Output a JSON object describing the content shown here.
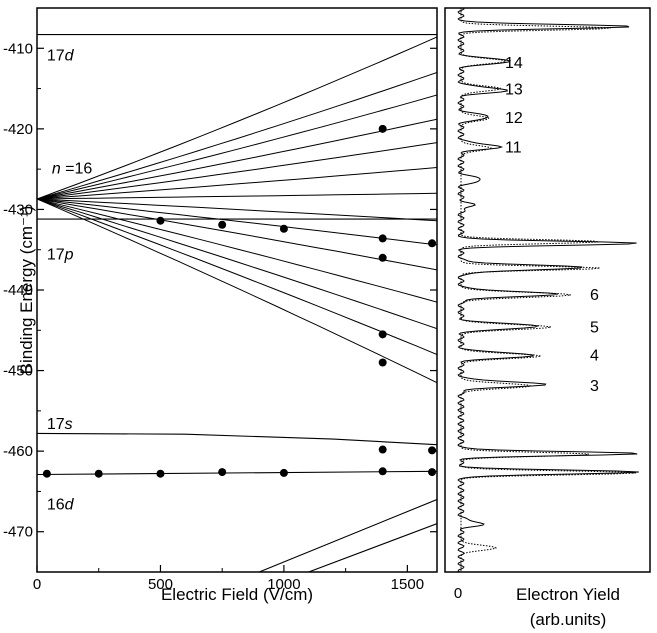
{
  "chart_data": [
    {
      "type": "line",
      "xlabel": "Electric Field (V/cm)",
      "ylabel": "Binding Energy (cm⁻¹)",
      "xlim": [
        0,
        1620
      ],
      "ylim": [
        -475,
        -405
      ],
      "x_ticks": [
        "0",
        "500",
        "1000",
        "1500"
      ],
      "x_tick_values": [
        0,
        500,
        1000,
        1500
      ],
      "y_ticks": [
        "-410",
        "-420",
        "-430",
        "-440",
        "-450",
        "-460",
        "-470"
      ],
      "y_tick_values": [
        -410,
        -420,
        -430,
        -440,
        -450,
        -460,
        -470
      ],
      "annotations": [
        {
          "text": "17d",
          "x": 40,
          "y": -410.8
        },
        {
          "text": "n =16",
          "x": 60,
          "y": -424.8
        },
        {
          "text": "17p",
          "x": 40,
          "y": -435.5
        },
        {
          "text": "17s",
          "x": 40,
          "y": -456.5
        },
        {
          "text": "16d",
          "x": 40,
          "y": -466.5
        }
      ],
      "stark_fan": {
        "origin": [
          0,
          -428.7
        ],
        "end_values_at_1620": [
          -408.6,
          -413.0,
          -415.8,
          -418.8,
          -421.7,
          -424.8,
          -428.0,
          -431.4,
          -434.4,
          -437.5,
          -441.5,
          -444.8,
          -448.0,
          -451.5
        ]
      },
      "series": [
        {
          "values_x": [
            0,
            1620
          ],
          "values_y": [
            -408.3,
            -408.3
          ]
        },
        {
          "values_x": [
            0,
            1620
          ],
          "values_y": [
            -431.2,
            -431.2
          ]
        },
        {
          "values_x": [
            0,
            600,
            1200,
            1620
          ],
          "values_y": [
            -457.8,
            -457.9,
            -458.5,
            -459.2
          ]
        },
        {
          "values_x": [
            0,
            1620
          ],
          "values_y": [
            -462.9,
            -462.5
          ]
        },
        {
          "values_x": [
            900,
            1620
          ],
          "values_y": [
            -475,
            -466.0
          ]
        },
        {
          "values_x": [
            1100,
            1620
          ],
          "values_y": [
            -475,
            -469.0
          ]
        }
      ],
      "points": [
        {
          "x": 40,
          "y": -462.8
        },
        {
          "x": 250,
          "y": -462.8
        },
        {
          "x": 500,
          "y": -462.8
        },
        {
          "x": 750,
          "y": -462.6
        },
        {
          "x": 1000,
          "y": -462.7
        },
        {
          "x": 1400,
          "y": -462.5
        },
        {
          "x": 1600,
          "y": -462.6
        },
        {
          "x": 1400,
          "y": -459.8
        },
        {
          "x": 1600,
          "y": -459.9
        },
        {
          "x": 1400,
          "y": -449.0
        },
        {
          "x": 1400,
          "y": -445.5
        },
        {
          "x": 1400,
          "y": -436.0
        },
        {
          "x": 1400,
          "y": -433.6
        },
        {
          "x": 1600,
          "y": -434.2
        },
        {
          "x": 500,
          "y": -431.4
        },
        {
          "x": 750,
          "y": -431.9
        },
        {
          "x": 1000,
          "y": -432.4
        },
        {
          "x": 1400,
          "y": -420.0
        }
      ]
    },
    {
      "type": "line",
      "xlabel": "Electron Yield",
      "xlabel2": "(arb.units)",
      "x_ticks": [
        "0"
      ],
      "ylim": [
        -475,
        -405
      ],
      "peak_labels": [
        {
          "text": "14",
          "y": -411.7
        },
        {
          "text": "13",
          "y": -415.0
        },
        {
          "text": "12",
          "y": -418.5
        },
        {
          "text": "11",
          "y": -422.2
        },
        {
          "text": "6",
          "y": -440.5
        },
        {
          "text": "5",
          "y": -444.5
        },
        {
          "text": "4",
          "y": -448.0
        },
        {
          "text": "3",
          "y": -451.8
        }
      ],
      "solid_peaks": [
        {
          "y": -407.3,
          "h": 175
        },
        {
          "y": -411.6,
          "h": 52
        },
        {
          "y": -415.2,
          "h": 48
        },
        {
          "y": -418.5,
          "h": 30
        },
        {
          "y": -422.2,
          "h": 40
        },
        {
          "y": -426.3,
          "h": 22
        },
        {
          "y": -429.5,
          "h": 12
        },
        {
          "y": -434.2,
          "h": 180
        },
        {
          "y": -437.2,
          "h": 120
        },
        {
          "y": -440.5,
          "h": 95
        },
        {
          "y": -444.5,
          "h": 80
        },
        {
          "y": -448.1,
          "h": 75
        },
        {
          "y": -451.7,
          "h": 85
        },
        {
          "y": -460.3,
          "h": 180
        },
        {
          "y": -462.6,
          "h": 180
        },
        {
          "y": -469.0,
          "h": 22
        }
      ],
      "dotted_peaks": [
        {
          "y": -407.5,
          "h": 150
        },
        {
          "y": -411.6,
          "h": 45
        },
        {
          "y": -415.0,
          "h": 40
        },
        {
          "y": -418.7,
          "h": 28
        },
        {
          "y": -422.4,
          "h": 30
        },
        {
          "y": -434.0,
          "h": 140
        },
        {
          "y": -437.3,
          "h": 140
        },
        {
          "y": -440.6,
          "h": 110
        },
        {
          "y": -444.6,
          "h": 90
        },
        {
          "y": -448.2,
          "h": 80
        },
        {
          "y": -451.9,
          "h": 70
        },
        {
          "y": -460.4,
          "h": 130
        },
        {
          "y": -462.7,
          "h": 175
        },
        {
          "y": -472.0,
          "h": 35
        }
      ]
    }
  ]
}
